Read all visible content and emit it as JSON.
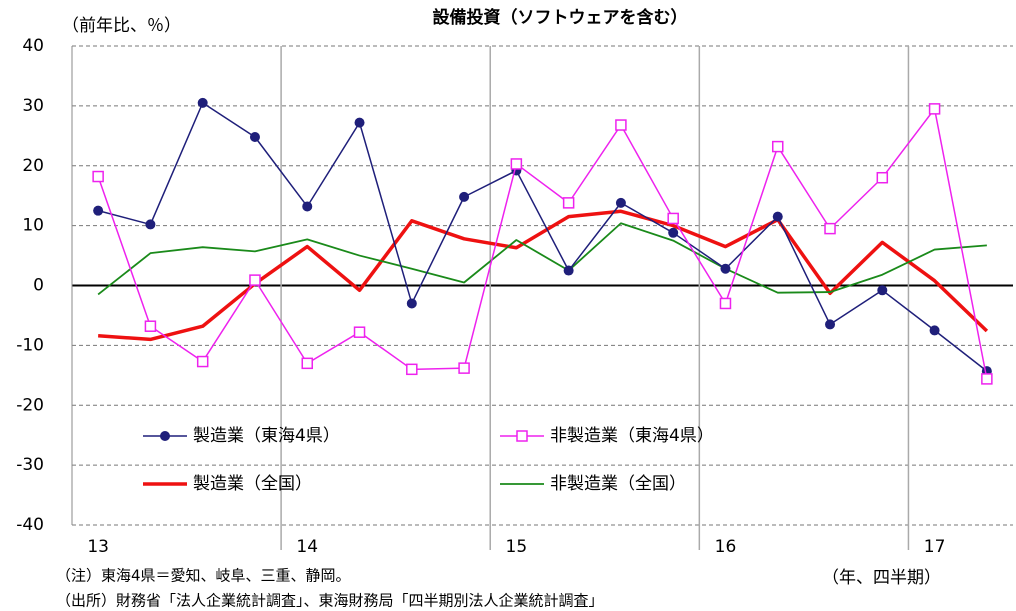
{
  "chart_data": {
    "type": "line",
    "title": "設備投資（ソフトウェアを含む）",
    "y_label": "（前年比、％）",
    "x_label": "（年、四半期）",
    "notes": [
      "（注）東海4県＝愛知、岐阜、三重、静岡。",
      "（出所）財務省「法人企業統計調査」、東海財務局「四半期別法人企業統計調査」"
    ],
    "categories": [
      "13",
      null,
      null,
      null,
      "14",
      null,
      null,
      null,
      "15",
      null,
      null,
      null,
      "16",
      null,
      null,
      null,
      "17",
      null
    ],
    "series": [
      {
        "name": "製造業（東海4県）",
        "color": "#1f1f7a",
        "marker": "circle",
        "width": 1.5,
        "values": [
          12.5,
          10.2,
          30.5,
          24.8,
          13.2,
          27.2,
          -3.0,
          14.8,
          19.2,
          2.5,
          13.8,
          8.8,
          2.8,
          11.5,
          -6.5,
          -0.8,
          -7.5,
          -14.3
        ]
      },
      {
        "name": "非製造業（東海4県）",
        "color": "#ee22ee",
        "marker": "square",
        "width": 1.5,
        "values": [
          18.2,
          -6.8,
          -12.7,
          0.9,
          -13.0,
          -7.8,
          -14.0,
          -13.8,
          20.3,
          13.8,
          26.8,
          11.2,
          -3.0,
          23.2,
          9.5,
          18.0,
          29.5,
          -15.6
        ]
      },
      {
        "name": "製造業（全国）",
        "color": "#ee1111",
        "marker": "none",
        "width": 3.5,
        "values": [
          -8.4,
          -9.0,
          -6.8,
          0.3,
          6.5,
          -0.8,
          10.8,
          7.8,
          6.3,
          11.5,
          12.4,
          10.0,
          6.5,
          11.0,
          -1.3,
          7.2,
          0.8,
          -7.6
        ]
      },
      {
        "name": "非製造業（全国）",
        "color": "#1a8a1a",
        "marker": "none",
        "width": 1.8,
        "values": [
          -1.5,
          5.4,
          6.4,
          5.7,
          7.7,
          5.0,
          2.8,
          0.5,
          7.6,
          2.5,
          10.4,
          7.5,
          2.8,
          -1.2,
          -1.1,
          1.8,
          6.0,
          6.7
        ]
      }
    ],
    "ylim": [
      -40,
      40
    ],
    "yticks": [
      -40,
      -30,
      -20,
      -10,
      0,
      10,
      20,
      30,
      40
    ],
    "grid": true,
    "legend": "lower left"
  }
}
